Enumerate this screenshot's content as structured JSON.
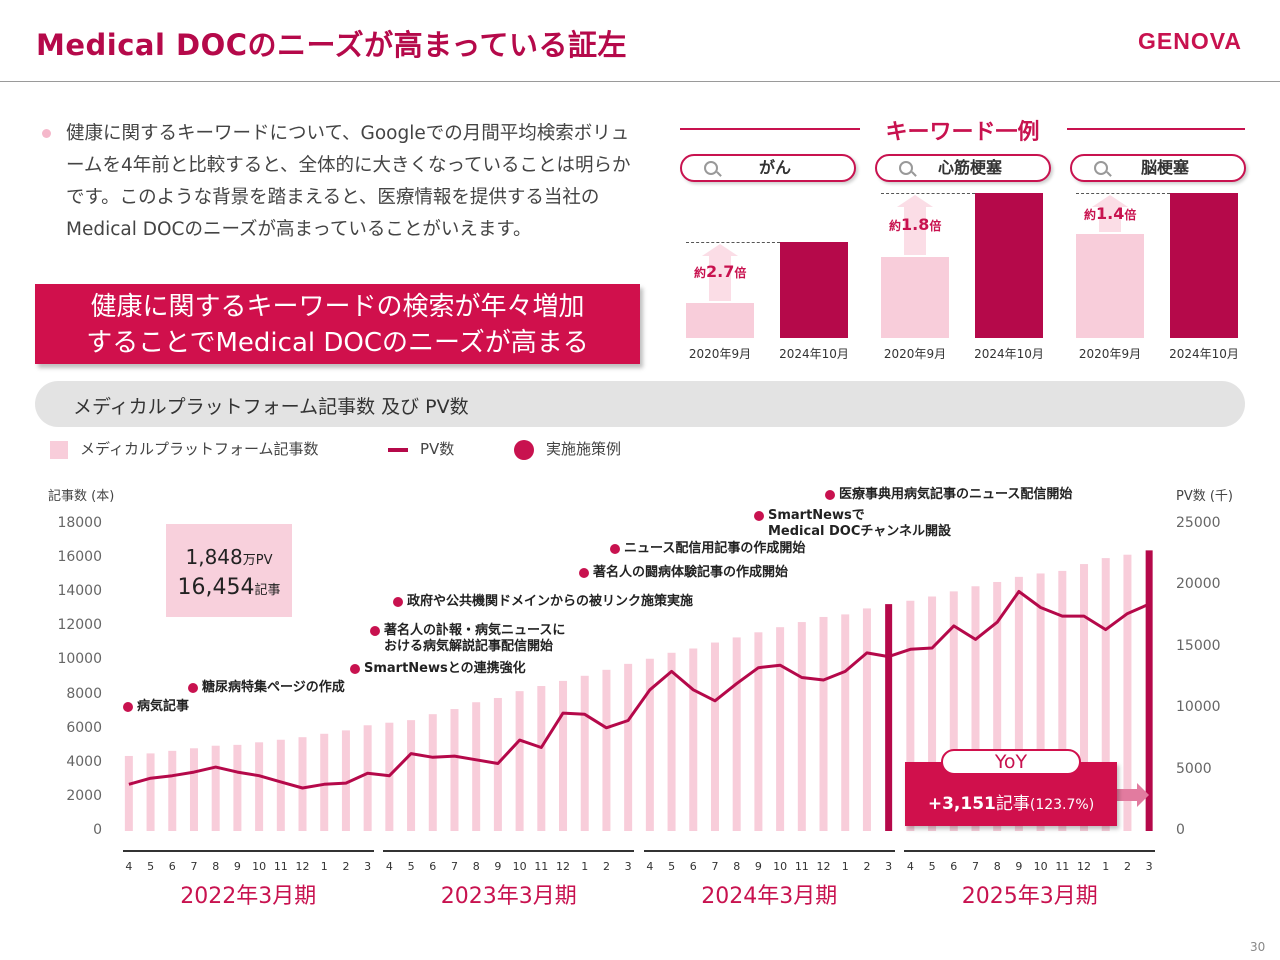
{
  "header": {
    "title": "Medical DOCのニーズが高まっている証左",
    "logo": "GENOVA"
  },
  "intro": {
    "bullet": "健康に関するキーワードについて、Googleでの月間平均検索ボリュームを4年前と比較すると、全体的に大きくなっていることは明らかです。このような背景を踏まえると、医療情報を提供する当社のMedical DOCのニーズが高まっていることがいえます。",
    "callout_line1": "健康に関するキーワードの検索が年々増加",
    "callout_line2": "することでMedical DOCのニーズが高まる"
  },
  "keywords": {
    "title": "キーワード一例",
    "items": [
      {
        "label": "がん",
        "ratio_prefix": "約",
        "ratio": "2.7",
        "ratio_suffix": "倍",
        "before": 1.0,
        "after": 2.7,
        "x_labels": [
          "2020年9月",
          "2024年10月"
        ]
      },
      {
        "label": "心筋梗塞",
        "ratio_prefix": "約",
        "ratio": "1.8",
        "ratio_suffix": "倍",
        "before": 1.0,
        "after": 1.8,
        "x_labels": [
          "2020年9月",
          "2024年10月"
        ]
      },
      {
        "label": "脳梗塞",
        "ratio_prefix": "約",
        "ratio": "1.4",
        "ratio_suffix": "倍",
        "before": 1.0,
        "after": 1.4,
        "x_labels": [
          "2020年9月",
          "2024年10月"
        ]
      }
    ]
  },
  "section": {
    "title": "メディカルプラットフォーム記事数 及び PV数"
  },
  "legend": {
    "articles": "メディカルプラットフォーム記事数",
    "pv": "PV数",
    "events": "実施施策例"
  },
  "summary_box": {
    "pv_value": "1,848",
    "pv_unit": "万PV",
    "articles_value": "16,454",
    "articles_unit": "記事"
  },
  "yoy": {
    "tag": "YoY",
    "value": "+3,151",
    "unit": "記事",
    "pct": "(123.7%)"
  },
  "colors": {
    "accent": "#C8124F",
    "bar": "#F8CDDA",
    "bar_highlight": "#B5094A",
    "line": "#B5094A"
  },
  "chart_data": {
    "type": "bar",
    "ylabel": "記事数 (本)",
    "y2label": "PV数 (千)",
    "ylim": [
      0,
      18000
    ],
    "y2lim": [
      0,
      25000
    ],
    "yticks": [
      "18000",
      "16000",
      "14000",
      "12000",
      "10000",
      "8000",
      "6000",
      "4000",
      "2000",
      "0"
    ],
    "y2ticks": [
      "25000",
      "20000",
      "15000",
      "10000",
      "5000",
      "0"
    ],
    "categories": [
      "4",
      "5",
      "6",
      "7",
      "8",
      "9",
      "10",
      "11",
      "12",
      "1",
      "2",
      "3",
      "4",
      "5",
      "6",
      "7",
      "8",
      "9",
      "10",
      "11",
      "12",
      "1",
      "2",
      "3",
      "4",
      "5",
      "6",
      "7",
      "8",
      "9",
      "10",
      "11",
      "12",
      "1",
      "2",
      "3",
      "4",
      "5",
      "6",
      "7",
      "8",
      "9",
      "10",
      "11",
      "12",
      "1",
      "2",
      "3"
    ],
    "periods": [
      "2022年3月期",
      "2023年3月期",
      "2024年3月期",
      "2025年3月期"
    ],
    "series": [
      {
        "name": "メディカルプラットフォーム記事数",
        "type": "bar",
        "values": [
          4400,
          4550,
          4700,
          4850,
          5000,
          5050,
          5200,
          5350,
          5500,
          5700,
          5900,
          6200,
          6350,
          6500,
          6850,
          7150,
          7550,
          7800,
          8200,
          8500,
          8800,
          9100,
          9450,
          9800,
          10100,
          10450,
          10700,
          11050,
          11350,
          11650,
          11950,
          12250,
          12550,
          12700,
          13050,
          13303,
          13500,
          13750,
          14050,
          14350,
          14600,
          14900,
          15100,
          15250,
          15650,
          16000,
          16200,
          16454
        ]
      },
      {
        "name": "PV数",
        "type": "line",
        "axis": "y2",
        "values": [
          3800,
          4300,
          4500,
          4800,
          5200,
          4800,
          4500,
          4000,
          3500,
          3800,
          3900,
          4700,
          4500,
          6300,
          6000,
          6100,
          5800,
          5500,
          7400,
          6800,
          9600,
          9500,
          8400,
          9000,
          11500,
          13000,
          11500,
          10600,
          12000,
          13300,
          13500,
          12500,
          12300,
          13000,
          14500,
          14200,
          14800,
          14900,
          16700,
          15600,
          17000,
          19500,
          18200,
          17500,
          17500,
          16400,
          17700,
          18480
        ]
      }
    ],
    "events": [
      {
        "label": "病気記事",
        "index": 0
      },
      {
        "label": "糖尿病特集ページの作成",
        "index": 3
      },
      {
        "label": "SmartNewsとの連携強化",
        "index": 11
      },
      {
        "label": "著名人の訃報・病気ニュースにおける病気解説記事配信開始",
        "lines": [
          "著名人の訃報・病気ニュースに",
          "おける病気解説記事配信開始"
        ],
        "index": 12
      },
      {
        "label": "政府や公共機関ドメインからの被リンク施策実施",
        "index": 13
      },
      {
        "label": "著名人の闘病体験記事の作成開始",
        "index": 21
      },
      {
        "label": "ニュース配信用記事の作成開始",
        "index": 22
      },
      {
        "label": "SmartNewsでMedical DOCチャンネル開設",
        "lines": [
          "SmartNewsで",
          "Medical DOCチャンネル開設"
        ],
        "index": 30
      },
      {
        "label": "医療事典用病気記事のニュース配信開始",
        "index": 33
      }
    ]
  },
  "page_number": "30"
}
